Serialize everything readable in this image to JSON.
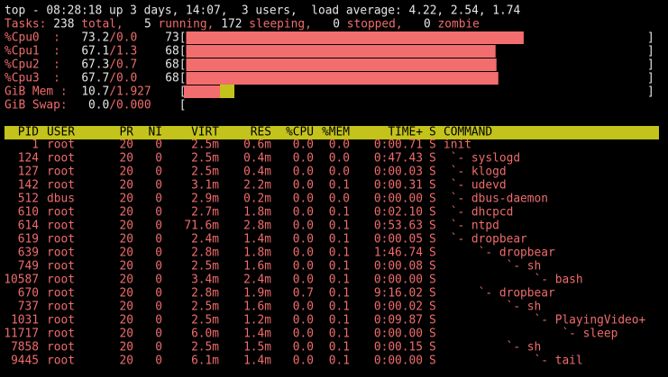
{
  "top_line": "top - 08:28:18 up 3 days, 14:07,  3 users,  load average: 4.22, 2.54, 1.74",
  "tasks": {
    "label": "Tasks:",
    "total": "238",
    "total_label": "total,",
    "running": "5",
    "running_label": "running,",
    "sleeping": "172",
    "sleeping_label": "sleeping,",
    "stopped": "0",
    "stopped_label": "stopped,",
    "zombie": "0",
    "zombie_label": "zombie"
  },
  "meter": {
    "open": "[",
    "close": "]"
  },
  "cpus": [
    {
      "label": "%Cpu0  :",
      "user": 73.2,
      "sys": "/0.0",
      "total": 73
    },
    {
      "label": "%Cpu1  :",
      "user": 67.1,
      "sys": "/1.3",
      "total": 68
    },
    {
      "label": "%Cpu2  :",
      "user": 67.3,
      "sys": "/0.7",
      "total": 68
    },
    {
      "label": "%Cpu3  :",
      "user": 67.7,
      "sys": "/0.0",
      "total": 68
    }
  ],
  "mem": {
    "label": "GiB Mem :",
    "used": "10.7",
    "total": "/1.927"
  },
  "swap": {
    "label": "GiB Swap:",
    "used": "0.0",
    "total": "/0.000"
  },
  "table": {
    "columns": [
      "PID",
      "USER",
      "PR",
      "NI",
      "VIRT",
      "RES",
      "%CPU",
      "%MEM",
      "TIME+",
      "S",
      "COMMAND"
    ],
    "rows": [
      [
        "1",
        "root",
        "20",
        "0",
        "2.5m",
        "0.6m",
        "0.0",
        "0.0",
        "0:00.71",
        "S",
        "init"
      ],
      [
        "124",
        "root",
        "20",
        "0",
        "2.5m",
        "0.4m",
        "0.0",
        "0.0",
        "0:47.43",
        "S",
        " `- syslogd"
      ],
      [
        "127",
        "root",
        "20",
        "0",
        "2.5m",
        "0.4m",
        "0.0",
        "0.0",
        "0:00.03",
        "S",
        " `- klogd"
      ],
      [
        "142",
        "root",
        "20",
        "0",
        "3.1m",
        "2.2m",
        "0.0",
        "0.1",
        "0:00.31",
        "S",
        " `- udevd"
      ],
      [
        "512",
        "dbus",
        "20",
        "0",
        "2.9m",
        "0.2m",
        "0.0",
        "0.0",
        "0:00.00",
        "S",
        " `- dbus-daemon"
      ],
      [
        "610",
        "root",
        "20",
        "0",
        "2.7m",
        "1.8m",
        "0.0",
        "0.1",
        "0:02.10",
        "S",
        " `- dhcpcd"
      ],
      [
        "614",
        "root",
        "20",
        "0",
        "71.6m",
        "2.8m",
        "0.0",
        "0.1",
        "0:53.63",
        "S",
        " `- ntpd"
      ],
      [
        "619",
        "root",
        "20",
        "0",
        "2.4m",
        "1.4m",
        "0.0",
        "0.1",
        "0:00.05",
        "S",
        " `- dropbear"
      ],
      [
        "639",
        "root",
        "20",
        "0",
        "2.8m",
        "1.8m",
        "0.0",
        "0.1",
        "1:46.74",
        "S",
        "     `- dropbear"
      ],
      [
        "749",
        "root",
        "20",
        "0",
        "2.5m",
        "1.6m",
        "0.0",
        "0.1",
        "0:00.08",
        "S",
        "         `- sh"
      ],
      [
        "10587",
        "root",
        "20",
        "0",
        "3.4m",
        "2.4m",
        "0.0",
        "0.1",
        "0:00.00",
        "S",
        "             `- bash"
      ],
      [
        "670",
        "root",
        "20",
        "0",
        "2.8m",
        "1.9m",
        "0.7",
        "0.1",
        "9:16.02",
        "S",
        "     `- dropbear"
      ],
      [
        "737",
        "root",
        "20",
        "0",
        "2.5m",
        "1.6m",
        "0.0",
        "0.1",
        "0:00.02",
        "S",
        "         `- sh"
      ],
      [
        "1031",
        "root",
        "20",
        "0",
        "2.5m",
        "1.2m",
        "0.0",
        "0.1",
        "0:09.87",
        "S",
        "             `- PlayingVideo+"
      ],
      [
        "11717",
        "root",
        "20",
        "0",
        "6.0m",
        "1.4m",
        "0.0",
        "0.1",
        "0:00.00",
        "S",
        "                 `- sleep"
      ],
      [
        "7858",
        "root",
        "20",
        "0",
        "2.5m",
        "1.5m",
        "0.0",
        "0.1",
        "0:00.15",
        "S",
        "         `- sh"
      ],
      [
        "9445",
        "root",
        "20",
        "0",
        "6.1m",
        "1.4m",
        "0.0",
        "0.1",
        "0:00.00",
        "S",
        "             `- tail"
      ]
    ]
  }
}
